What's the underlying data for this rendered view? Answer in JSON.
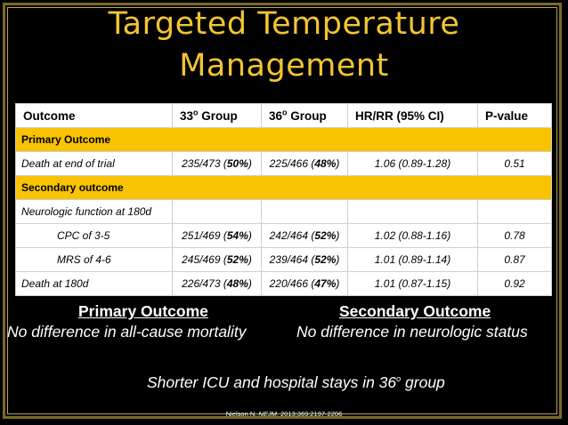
{
  "slide": {
    "title_line1": "Targeted Temperature",
    "title_line2": "Management"
  },
  "table": {
    "headers": {
      "outcome": "Outcome",
      "g33": "33",
      "g36": "36",
      "sup": "o",
      "group": " Group",
      "hr": "HR/RR (95% CI)",
      "p": "P-value"
    },
    "primary_section": "Primary Outcome",
    "secondary_section": "Secondary outcome",
    "rows": [
      {
        "outcome": "Death at end of trial",
        "g33_n": "235/473 (",
        "g33_pct": "50%",
        "g36_n": "225/466 (",
        "g36_pct": "48%",
        "hr": "1.06 (0.89-1.28)",
        "p": "0.51"
      },
      {
        "outcome": "Neurologic function at 180d"
      },
      {
        "outcome": "CPC of 3-5",
        "g33_n": "251/469 (",
        "g33_pct": "54%",
        "g36_n": "242/464 (",
        "g36_pct": "52%",
        "hr": "1.02 (0.88-1.16)",
        "p": "0.78"
      },
      {
        "outcome": "MRS of 4-6",
        "g33_n": "245/469 (",
        "g33_pct": "52%",
        "g36_n": "239/464 (",
        "g36_pct": "52%",
        "hr": "1.01 (0.89-1.14)",
        "p": "0.87"
      },
      {
        "outcome": "Death at 180d",
        "g33_n": "226/473 (",
        "g33_pct": "48%",
        "g36_n": "220/466 (",
        "g36_pct": "47%",
        "hr": "1.01 (0.87-1.15)",
        "p": "0.92"
      }
    ],
    "close_paren": ")"
  },
  "summary": {
    "primary_heading": "Primary Outcome",
    "primary_text": "No difference in all-cause mortality",
    "secondary_heading": "Secondary Outcome",
    "secondary_text": "No difference in neurologic status",
    "shorter_before": "Shorter ICU and hospital stays in 36",
    "shorter_sup": "o",
    "shorter_after": " group"
  },
  "citation": {
    "before": "Nielson N. ",
    "journal": "NEJM",
    "after": ". 2013;369:2197-2206"
  },
  "colors": {
    "title": "#f2c531",
    "section_fill": "#f8c300",
    "frame": "#7a6a2a"
  }
}
